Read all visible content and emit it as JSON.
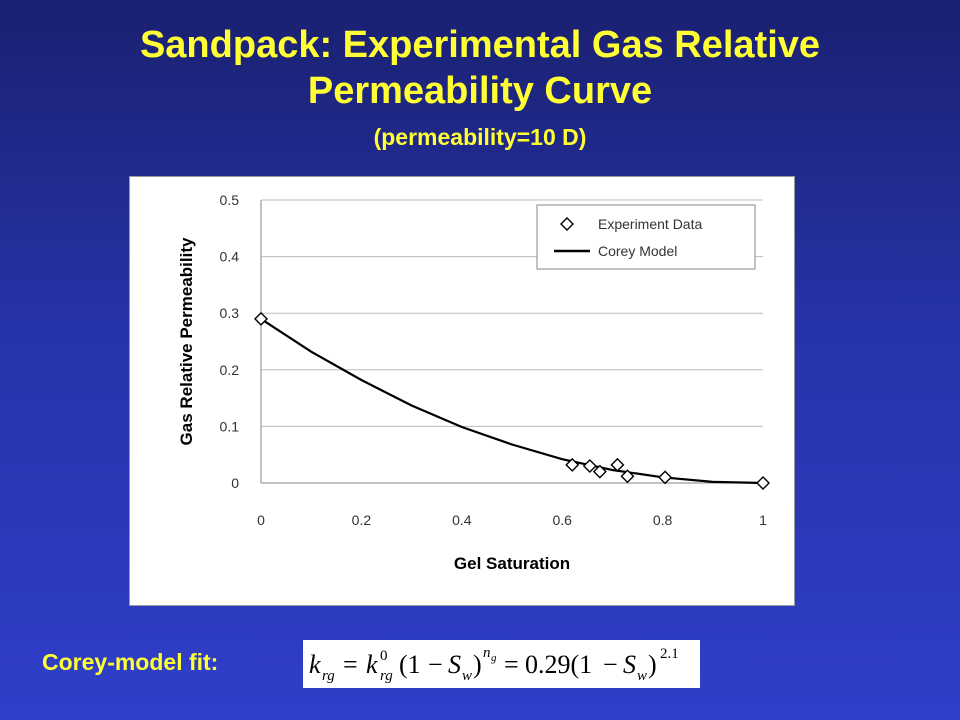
{
  "slide": {
    "title_line1": "Sandpack: Experimental Gas Relative",
    "title_line2": "Permeability Curve",
    "subtitle": "(permeability=10 D)",
    "fit_label": "Corey-model fit:",
    "title_color": "#ffff33"
  },
  "formula": {
    "k": "k",
    "rg": "rg",
    "zero": "0",
    "eq": "=",
    "one_minus": "(1",
    "minus": "−",
    "S": "S",
    "w": "w",
    "close": ")",
    "n": "n",
    "g": "g",
    "coef": "0.29(1",
    "exp": "2.1"
  },
  "chart_data": {
    "type": "scatter",
    "xlabel": "Gel Saturation",
    "ylabel": "Gas Relative Permeability",
    "xlim": [
      0,
      1
    ],
    "ylim": [
      0,
      0.5
    ],
    "x_ticks": [
      "0",
      "0.2",
      "0.4",
      "0.6",
      "0.8",
      "1"
    ],
    "y_ticks": [
      "0",
      "0.1",
      "0.2",
      "0.3",
      "0.4",
      "0.5"
    ],
    "grid": "horizontal",
    "legend_position": "top-right",
    "series": [
      {
        "name": "Experiment Data",
        "marker": "diamond",
        "points": [
          {
            "x": 0.0,
            "y": 0.29
          },
          {
            "x": 0.62,
            "y": 0.032
          },
          {
            "x": 0.655,
            "y": 0.03
          },
          {
            "x": 0.675,
            "y": 0.02
          },
          {
            "x": 0.71,
            "y": 0.032
          },
          {
            "x": 0.73,
            "y": 0.012
          },
          {
            "x": 0.805,
            "y": 0.01
          },
          {
            "x": 1.0,
            "y": 0.0
          }
        ]
      },
      {
        "name": "Corey Model",
        "line": "solid",
        "points": [
          {
            "x": 0.0,
            "y": 0.29
          },
          {
            "x": 0.1,
            "y": 0.232
          },
          {
            "x": 0.2,
            "y": 0.182
          },
          {
            "x": 0.3,
            "y": 0.137
          },
          {
            "x": 0.4,
            "y": 0.099
          },
          {
            "x": 0.5,
            "y": 0.068
          },
          {
            "x": 0.6,
            "y": 0.042
          },
          {
            "x": 0.7,
            "y": 0.023
          },
          {
            "x": 0.8,
            "y": 0.01
          },
          {
            "x": 0.9,
            "y": 0.002
          },
          {
            "x": 1.0,
            "y": 0.0
          }
        ]
      }
    ]
  }
}
